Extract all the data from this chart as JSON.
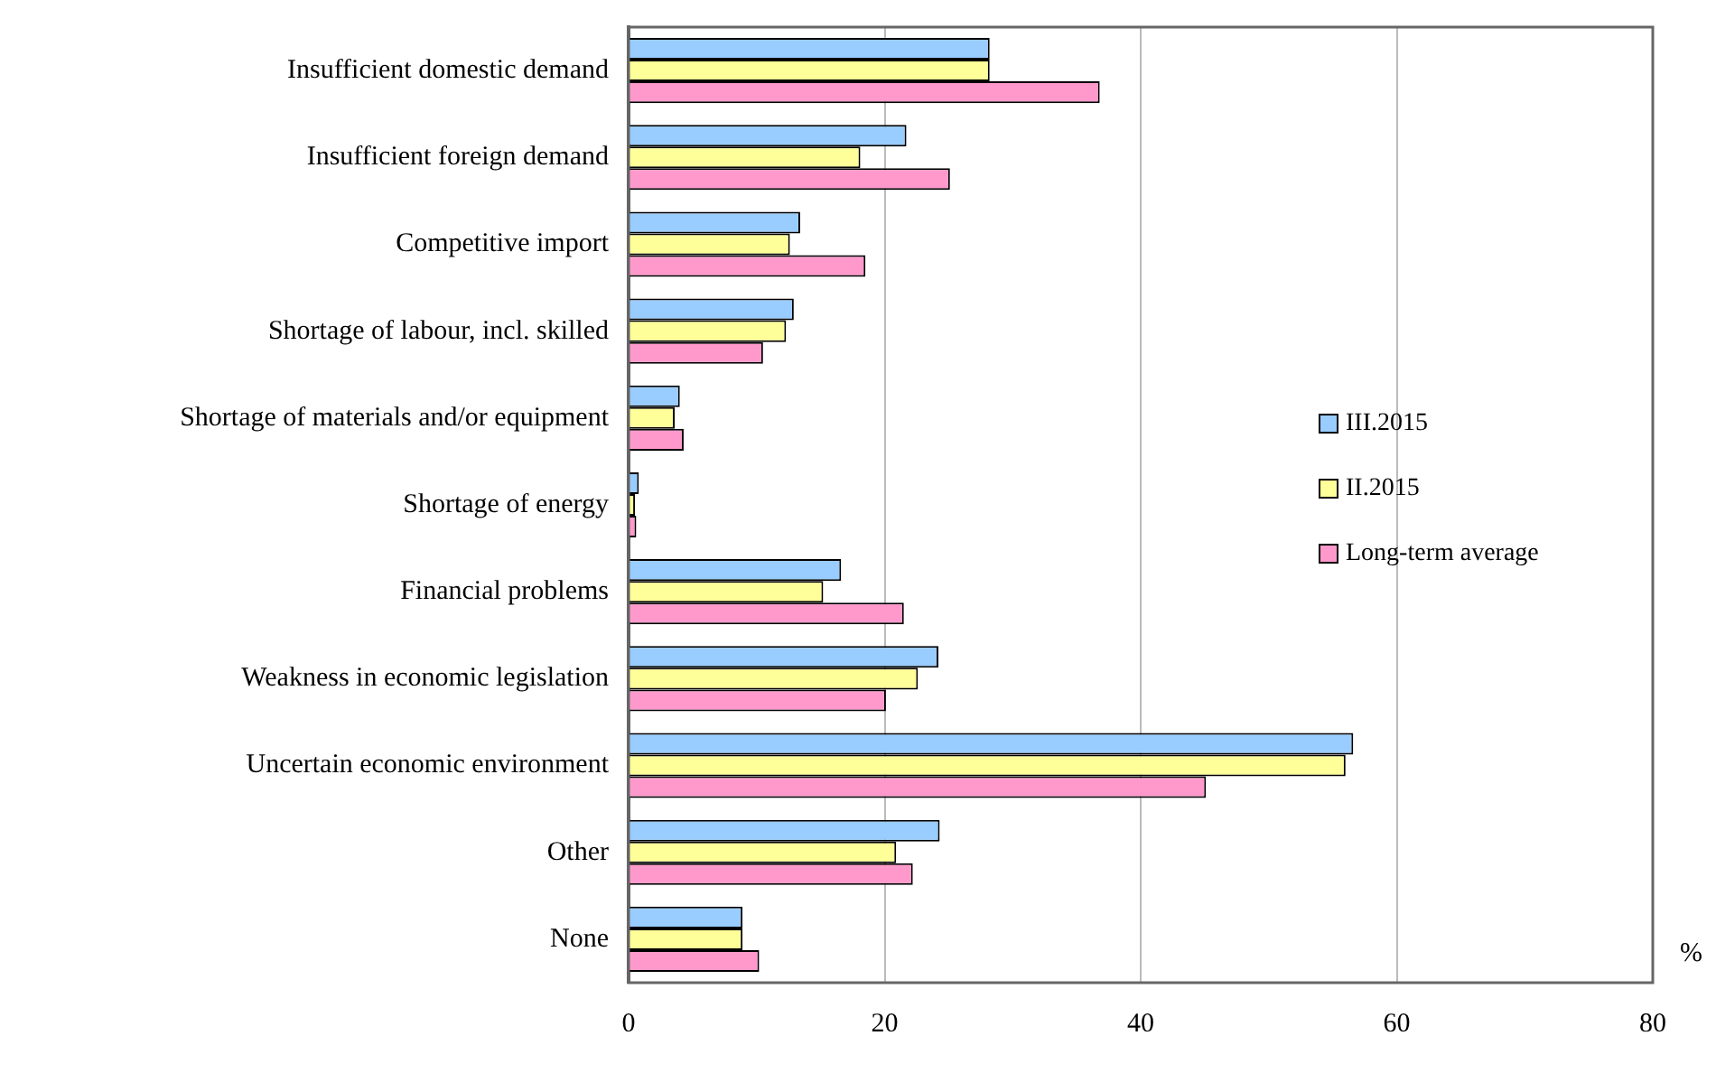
{
  "chart_data": {
    "type": "bar",
    "orientation": "horizontal",
    "xlabel": "%",
    "categories": [
      "Insufficient domestic demand",
      "Insufficient foreign demand",
      "Competitive import",
      "Shortage of labour, incl. skilled",
      "Shortage of materials and/or equipment",
      "Shortage of energy",
      "Financial problems",
      "Weakness in economic legislation",
      "Uncertain economic environment",
      "Other",
      "None"
    ],
    "series": [
      {
        "name": "III.2015",
        "color": "#99ccff",
        "values": [
          28.2,
          21.7,
          13.4,
          12.9,
          4.0,
          0.8,
          16.6,
          24.2,
          56.6,
          24.3,
          8.9
        ]
      },
      {
        "name": "II.2015",
        "color": "#ffff99",
        "values": [
          28.2,
          18.1,
          12.6,
          12.3,
          3.6,
          0.5,
          15.2,
          22.6,
          56.0,
          20.9,
          8.9
        ]
      },
      {
        "name": "Long-term average",
        "color": "#ff99cc",
        "values": [
          36.8,
          25.1,
          18.5,
          10.5,
          4.3,
          0.6,
          21.5,
          20.1,
          45.1,
          22.2,
          10.2
        ]
      }
    ],
    "xlim": [
      0,
      80
    ],
    "xticks": [
      0,
      20,
      40,
      60,
      80
    ],
    "grid": "x",
    "legend": "right"
  }
}
